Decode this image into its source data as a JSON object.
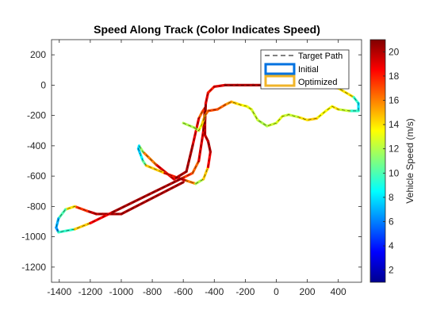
{
  "chart_data": {
    "type": "line",
    "title": "Speed Along Track (Color Indicates Speed)",
    "xlabel": "",
    "ylabel": "",
    "xlim": [
      -1450,
      550
    ],
    "ylim": [
      -1300,
      300
    ],
    "x_ticks": [
      -1400,
      -1200,
      -1000,
      -800,
      -600,
      -400,
      -200,
      0,
      200,
      400
    ],
    "y_ticks": [
      200,
      0,
      -200,
      -400,
      -600,
      -800,
      -1000,
      -1200
    ],
    "grid": false,
    "legend_position": "top-right",
    "legend": [
      "Target Path",
      "Initial",
      "Optimized"
    ],
    "colorbar": {
      "label": "Vehicle Speed (m/s)",
      "range": [
        1,
        21
      ],
      "ticks": [
        2,
        4,
        6,
        8,
        10,
        12,
        14,
        16,
        18,
        20
      ],
      "colormap": "jet"
    },
    "track": {
      "x": [
        -600,
        -1000,
        -1120,
        -1160,
        -1220,
        -1300,
        -1360,
        -1405,
        -1420,
        -1405,
        -1300,
        -1200,
        -1060,
        -820,
        -600,
        -540,
        -500,
        -470,
        -460,
        -480,
        -500,
        -540,
        -580,
        -660,
        -780,
        -860,
        -885,
        -890,
        -875,
        -860,
        -840,
        -720,
        -640,
        -580,
        -520,
        -470,
        -440,
        -425,
        -440,
        -460,
        -460,
        -455,
        -440,
        -400,
        -330,
        -250,
        -150,
        -50,
        20,
        150,
        250,
        400,
        500,
        530,
        530,
        470,
        400,
        360,
        320,
        260,
        200,
        140,
        80,
        40,
        0,
        -60,
        -120,
        -160,
        -190,
        -230,
        -260,
        -290,
        -330,
        -380,
        -440,
        -460,
        -470,
        -480,
        -500,
        -530,
        -600
      ],
      "y": [
        -640,
        -850,
        -850,
        -850,
        -830,
        -800,
        -820,
        -880,
        -940,
        -970,
        -950,
        -910,
        -840,
        -720,
        -610,
        -580,
        -500,
        -300,
        -150,
        -180,
        -220,
        -400,
        -570,
        -620,
        -520,
        -440,
        -400,
        -420,
        -460,
        -500,
        -530,
        -580,
        -610,
        -630,
        -650,
        -620,
        -540,
        -440,
        -370,
        -330,
        -250,
        -120,
        -50,
        -10,
        0,
        0,
        0,
        0,
        0,
        0,
        0,
        -20,
        -80,
        -120,
        -170,
        -170,
        -160,
        -140,
        -170,
        -220,
        -230,
        -210,
        -195,
        -205,
        -250,
        -270,
        -230,
        -160,
        -140,
        -130,
        -120,
        -110,
        -130,
        -160,
        -170,
        -200,
        -230,
        -260,
        -300,
        -280,
        -250
      ],
      "speed": [
        20,
        20,
        20,
        20,
        19,
        16,
        12,
        8,
        6,
        7,
        12,
        17,
        20,
        20,
        20,
        15,
        18,
        20,
        20,
        15,
        18,
        20,
        20,
        20,
        18,
        14,
        9,
        7,
        8,
        9,
        12,
        17,
        19,
        20,
        12,
        12,
        17,
        20,
        20,
        19,
        20,
        20,
        18,
        18,
        20,
        20,
        20,
        20,
        20,
        19,
        18,
        17,
        11,
        8,
        8,
        11,
        14,
        14,
        13,
        14,
        15,
        13,
        12,
        13,
        13,
        12,
        12,
        13,
        13,
        14,
        14,
        15,
        16,
        17,
        17,
        16,
        15,
        14,
        13,
        12,
        12
      ]
    }
  }
}
